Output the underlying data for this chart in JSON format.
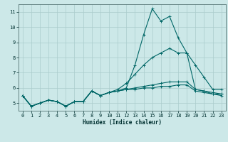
{
  "title": "",
  "xlabel": "Humidex (Indice chaleur)",
  "bg_color": "#cce8e8",
  "grid_color": "#aacccc",
  "line_color": "#006666",
  "xlim": [
    -0.5,
    23.5
  ],
  "ylim": [
    4.5,
    11.5
  ],
  "xticks": [
    0,
    1,
    2,
    3,
    4,
    5,
    6,
    7,
    8,
    9,
    10,
    11,
    12,
    13,
    14,
    15,
    16,
    17,
    18,
    19,
    20,
    21,
    22,
    23
  ],
  "yticks": [
    5,
    6,
    7,
    8,
    9,
    10,
    11
  ],
  "x": [
    0,
    1,
    2,
    3,
    4,
    5,
    6,
    7,
    8,
    9,
    10,
    11,
    12,
    13,
    14,
    15,
    16,
    17,
    18,
    19,
    20,
    21,
    22,
    23
  ],
  "lines": [
    [
      5.5,
      4.8,
      5.0,
      5.2,
      5.1,
      4.8,
      5.1,
      5.1,
      5.8,
      5.5,
      5.7,
      5.8,
      6.0,
      7.5,
      9.5,
      11.2,
      10.4,
      10.7,
      9.3,
      8.3,
      5.9,
      5.8,
      5.6,
      5.6
    ],
    [
      5.5,
      4.8,
      5.0,
      5.2,
      5.1,
      4.8,
      5.1,
      5.1,
      5.8,
      5.5,
      5.7,
      5.9,
      6.3,
      6.9,
      7.5,
      8.0,
      8.3,
      8.6,
      8.3,
      8.3,
      7.5,
      6.7,
      5.9,
      5.9
    ],
    [
      5.5,
      4.8,
      5.0,
      5.2,
      5.1,
      4.8,
      5.1,
      5.1,
      5.8,
      5.5,
      5.7,
      5.8,
      5.9,
      6.0,
      6.1,
      6.2,
      6.3,
      6.4,
      6.4,
      6.4,
      5.9,
      5.8,
      5.7,
      5.6
    ],
    [
      5.5,
      4.8,
      5.0,
      5.2,
      5.1,
      4.8,
      5.1,
      5.1,
      5.8,
      5.5,
      5.7,
      5.8,
      5.9,
      5.9,
      6.0,
      6.0,
      6.1,
      6.1,
      6.2,
      6.2,
      5.8,
      5.7,
      5.6,
      5.5
    ]
  ]
}
